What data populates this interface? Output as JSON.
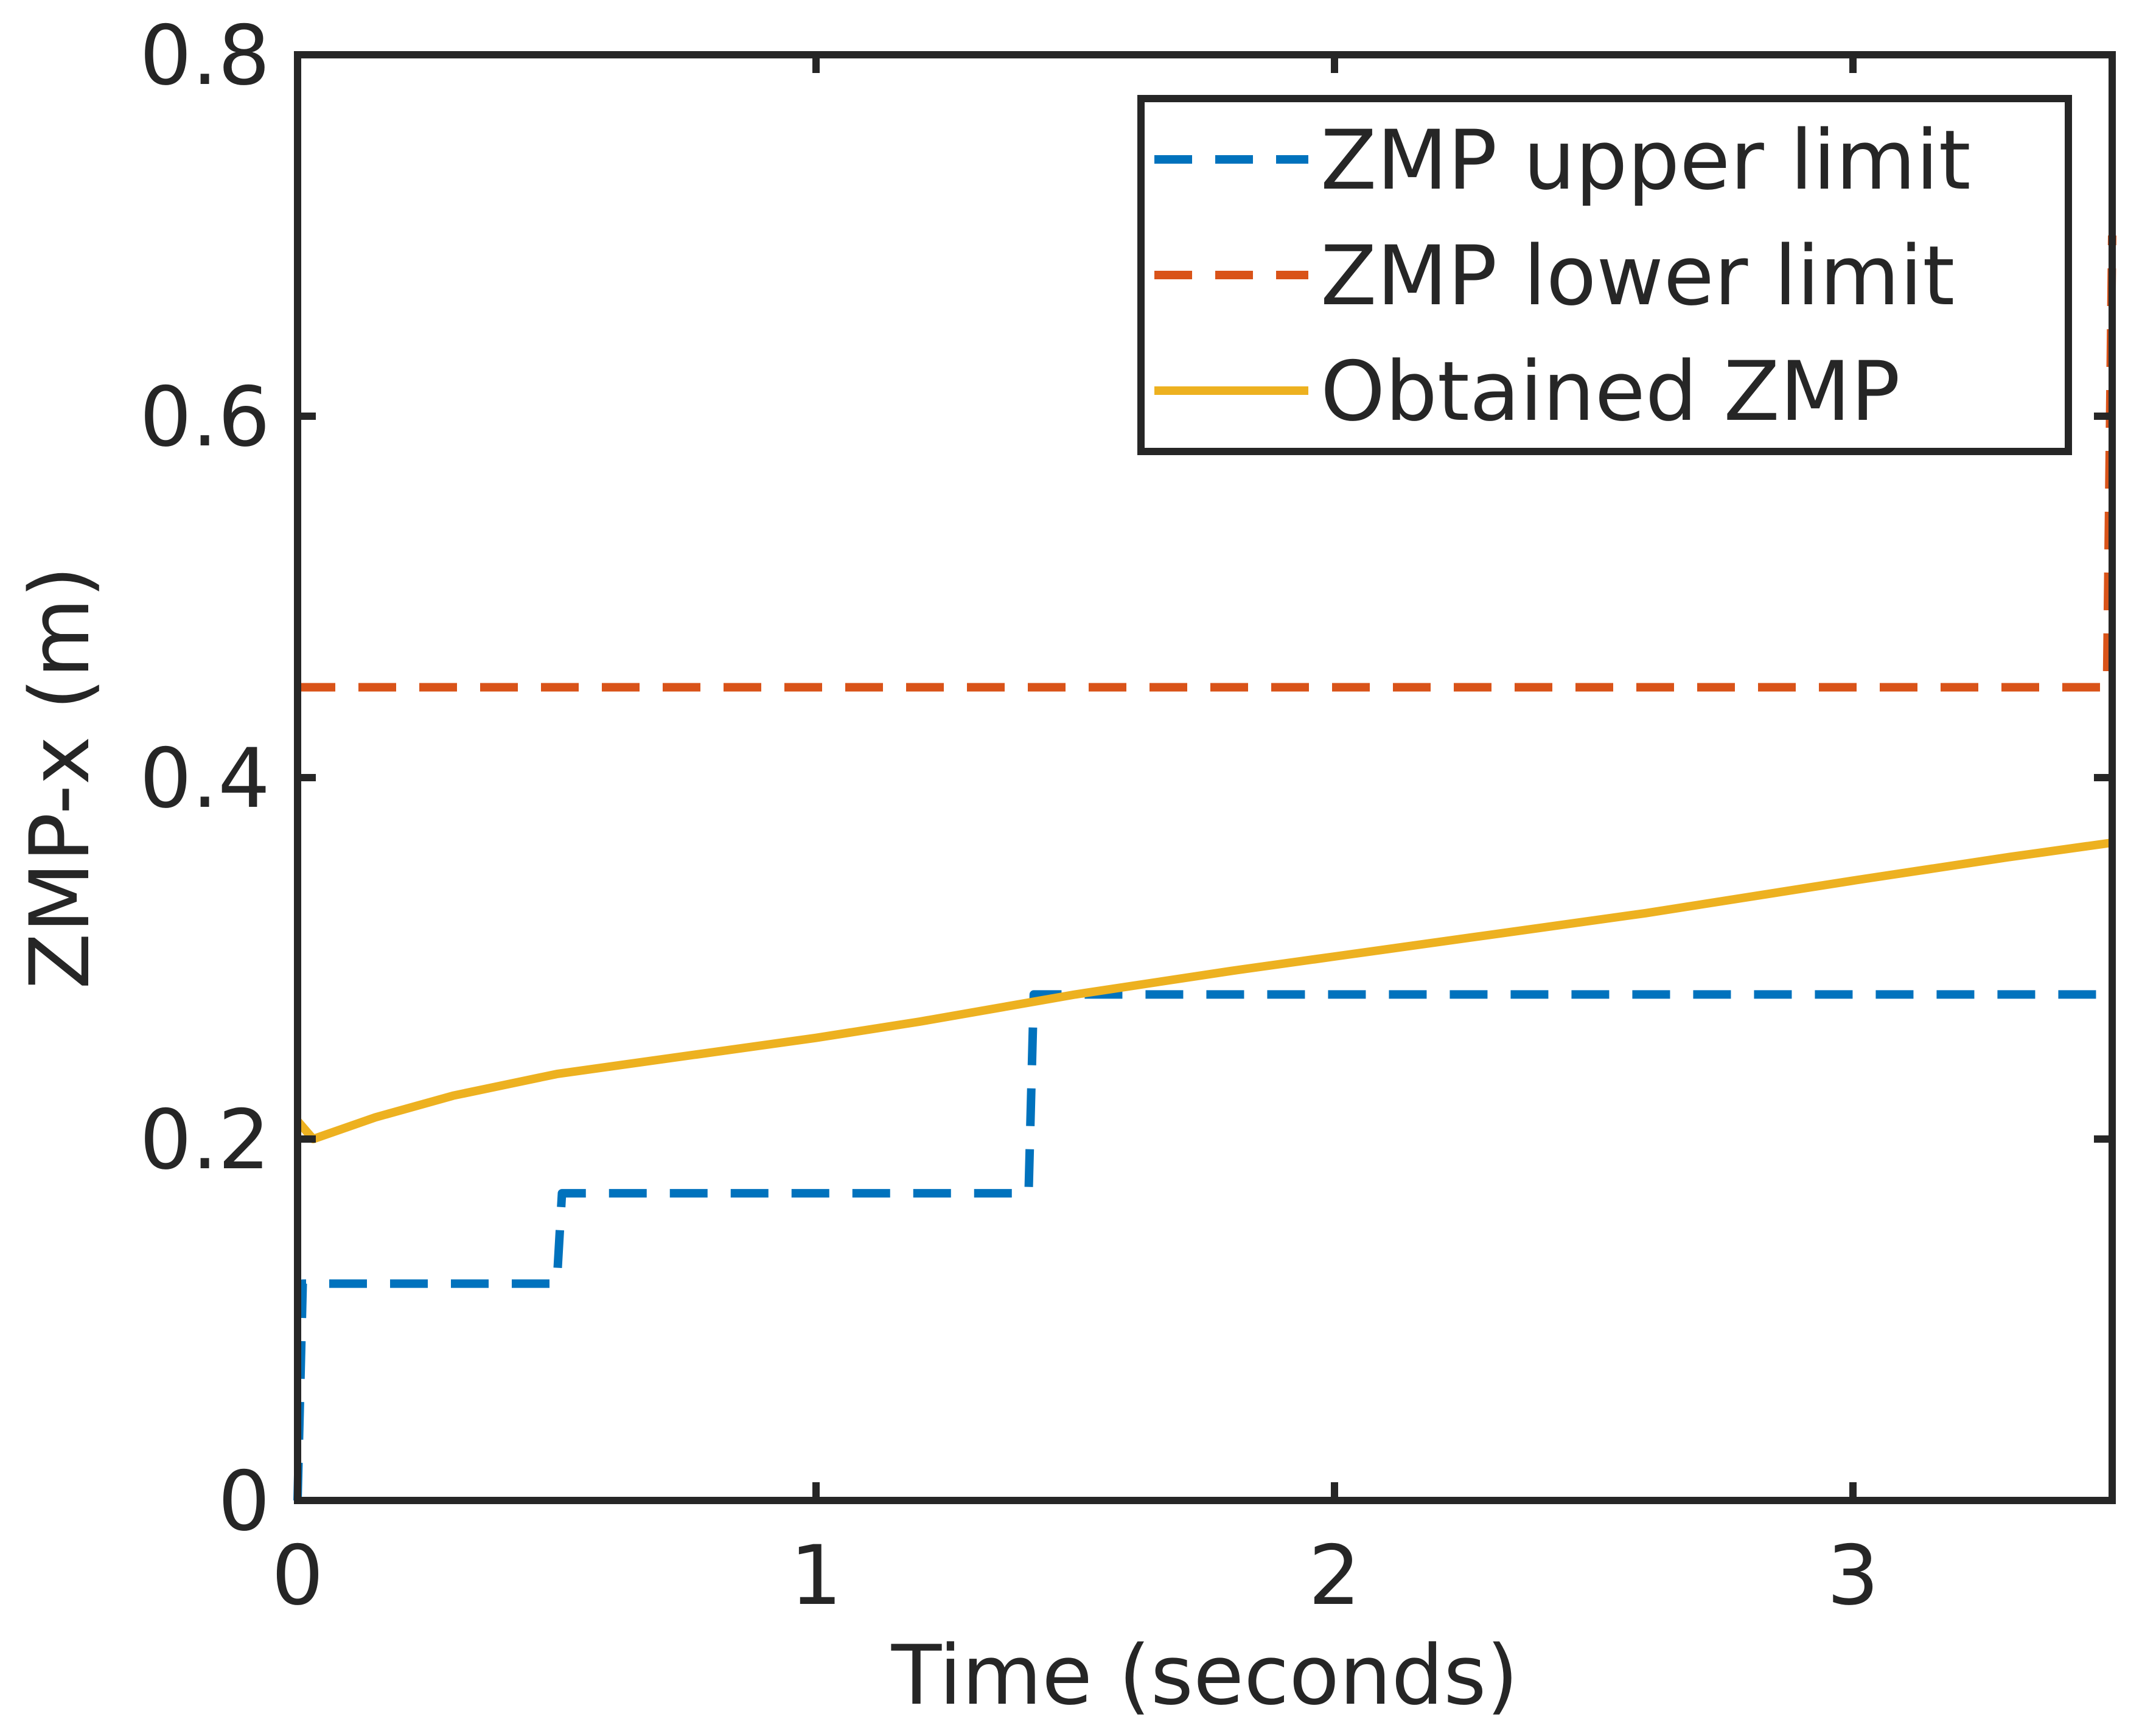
{
  "chart_data": {
    "type": "line",
    "title": "",
    "xlabel": "Time (seconds)",
    "ylabel": "ZMP-x (m)",
    "xlim": [
      0,
      3.5
    ],
    "ylim": [
      0,
      0.8
    ],
    "xticks": [
      0,
      1,
      2,
      3
    ],
    "xtick_labels": [
      "0",
      "1",
      "2",
      "3"
    ],
    "yticks": [
      0,
      0.2,
      0.4,
      0.6,
      0.8
    ],
    "ytick_labels": [
      "0",
      "0.2",
      "0.4",
      "0.6",
      "0.8"
    ],
    "grid": false,
    "legend_position": "top-right",
    "series": [
      {
        "name": "ZMP upper limit",
        "color": "#0072BD",
        "style": "dashed",
        "x": [
          0,
          0.01,
          0.5,
          0.51,
          1.41,
          1.42,
          3.5
        ],
        "y": [
          0,
          0.12,
          0.12,
          0.17,
          0.17,
          0.28,
          0.28
        ]
      },
      {
        "name": "ZMP lower limit",
        "color": "#D95319",
        "style": "dashed",
        "x": [
          0,
          3.49,
          3.5
        ],
        "y": [
          0.45,
          0.45,
          0.7
        ]
      },
      {
        "name": "Obtained ZMP",
        "color": "#EDB120",
        "style": "solid",
        "x": [
          0,
          0.03,
          0.15,
          0.3,
          0.5,
          0.8,
          1.0,
          1.2,
          1.5,
          1.8,
          2.0,
          2.3,
          2.6,
          3.0,
          3.3,
          3.5
        ],
        "y": [
          0.21,
          0.2,
          0.212,
          0.224,
          0.236,
          0.248,
          0.256,
          0.265,
          0.28,
          0.293,
          0.301,
          0.313,
          0.325,
          0.343,
          0.356,
          0.364
        ]
      }
    ]
  }
}
